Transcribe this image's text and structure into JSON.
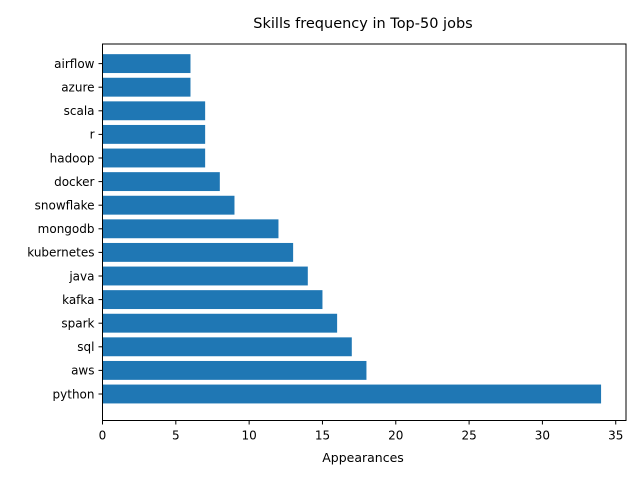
{
  "chart_data": {
    "type": "bar",
    "orientation": "horizontal",
    "title": "Skills frequency in Top-50 jobs",
    "xlabel": "Appearances",
    "ylabel": "",
    "categories": [
      "python",
      "aws",
      "sql",
      "spark",
      "kafka",
      "java",
      "kubernetes",
      "mongodb",
      "snowflake",
      "docker",
      "hadoop",
      "r",
      "scala",
      "azure",
      "airflow"
    ],
    "values": [
      34,
      18,
      17,
      16,
      15,
      14,
      13,
      12,
      9,
      8,
      7,
      7,
      7,
      6,
      6
    ],
    "xlim": [
      0,
      35.7
    ],
    "xticks": [
      0,
      5,
      10,
      15,
      20,
      25,
      30,
      35
    ],
    "bar_color": "#1f77b4",
    "grid": false,
    "legend": "none"
  }
}
